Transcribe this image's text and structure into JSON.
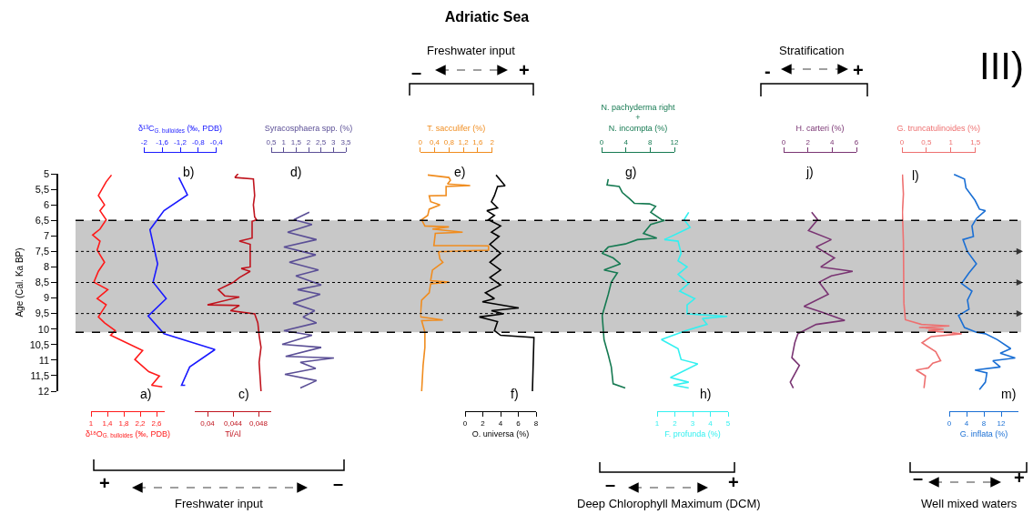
{
  "chart_data": [
    {
      "type": "line",
      "xlabel": "δ¹⁸O$_{G. bulloides}$ (‰, PDB)",
      "ylabel": "Age (Cal. Ka BP)",
      "color": "#ff1a1a",
      "marker": "none",
      "grid": false,
      "x": [
        1.5,
        1.37,
        1.18,
        1.33,
        1.22,
        1.37,
        1.22,
        1.04,
        1.22,
        1.15,
        1.33,
        1.18,
        1.07,
        1.41,
        1.15,
        1.37,
        1.18,
        1.33,
        1.59,
        1.48,
        2.26,
        2.07,
        2.41,
        2.67,
        2.48,
        2.74
      ],
      "values": [
        5.04,
        5.26,
        5.7,
        6.0,
        6.19,
        6.48,
        6.78,
        6.97,
        7.17,
        7.46,
        7.85,
        8.14,
        8.49,
        8.73,
        9.02,
        9.22,
        9.61,
        9.8,
        10.05,
        10.2,
        10.69,
        10.98,
        11.37,
        11.51,
        11.81,
        11.86
      ],
      "xlim": [
        1,
        2.8
      ],
      "xticks": [
        1,
        {
          "value": 1.4,
          "label": "1,4"
        },
        {
          "value": 1.8,
          "label": "1,8"
        },
        {
          "value": 2.2,
          "label": "2,2"
        },
        {
          "value": 2.6,
          "label": "2,6"
        }
      ],
      "ylim": [
        12,
        5
      ],
      "yticks": [
        5,
        {
          "value": 5.5,
          "label": "5,5"
        },
        6,
        {
          "value": 6.5,
          "label": "6,5"
        },
        7,
        {
          "value": 7.5,
          "label": "7,5"
        },
        8,
        {
          "value": 8.5,
          "label": "8,5"
        },
        9,
        {
          "value": 9.5,
          "label": "9,5"
        },
        10,
        {
          "value": 10.5,
          "label": "10,5"
        },
        11,
        {
          "value": 11.5,
          "label": "11,5"
        },
        12
      ],
      "bands": [
        {
          "axis": "y",
          "from": 6.5,
          "to": 10.1,
          "color": "#c8c8c8"
        }
      ],
      "ref_lines": [
        {
          "axis": "y",
          "value": 6.5,
          "line_style": "dashed",
          "color": "#000000"
        },
        {
          "axis": "y",
          "value": 10.1,
          "line_style": "dashed",
          "color": "#000000"
        },
        {
          "axis": "y",
          "value": 7.5,
          "line_style": "dotted",
          "color": "#000000"
        },
        {
          "axis": "y",
          "value": 8.5,
          "line_style": "dotted",
          "color": "#000000"
        },
        {
          "axis": "y",
          "value": 9.5,
          "line_style": "dotted",
          "color": "#000000"
        }
      ],
      "annotations": [
        "a)",
        "Freshwater input",
        "+",
        "–",
        "III)"
      ]
    },
    {
      "type": "line",
      "xlabel": "δ¹³C$_{G. bulloides}$ (‰, PDB)",
      "color": "#1a1aff",
      "marker": "none",
      "grid": false,
      "tick_labels": "x",
      "x": [
        -1.23,
        -1.04,
        -1.56,
        -1.87,
        -1.7,
        -1.8,
        -1.51,
        -1.91,
        -1.56,
        -0.43,
        -0.99,
        -1.17,
        -1.09
      ],
      "values": [
        5.12,
        5.68,
        6.19,
        6.8,
        7.9,
        8.49,
        9.02,
        9.58,
        10.15,
        10.66,
        11.22,
        11.81,
        11.81
      ],
      "xlim": [
        -2,
        -0.4
      ],
      "xticks": [
        -2,
        {
          "value": -1.6,
          "label": "-1,6"
        },
        {
          "value": -1.2,
          "label": "-1,2"
        },
        {
          "value": -0.8,
          "label": "-0,8"
        },
        {
          "value": -0.4,
          "label": "-0,4"
        }
      ],
      "ylim": [
        12,
        5
      ],
      "annotations": [
        "b)"
      ]
    },
    {
      "type": "line",
      "xlabel": "Ti/Al",
      "color": "#c0141e",
      "marker": "none",
      "grid": false,
      "tick_labels": "x",
      "x": [
        0.0448,
        0.0443,
        0.0472,
        0.0474,
        0.0472,
        0.0474,
        0.0477,
        0.047,
        0.047,
        0.045,
        0.0467,
        0.0467,
        0.0467,
        0.0453,
        0.0467,
        0.045,
        0.0441,
        0.0417,
        0.0427,
        0.045,
        0.04,
        0.045,
        0.0436,
        0.0474,
        0.0479,
        0.0481,
        0.0484,
        0.0481,
        0.0484
      ],
      "values": [
        5.0,
        5.12,
        5.17,
        5.7,
        6.0,
        6.39,
        6.48,
        6.53,
        7.07,
        7.17,
        7.27,
        7.85,
        8.0,
        8.05,
        8.14,
        8.34,
        8.49,
        8.73,
        8.93,
        8.97,
        9.22,
        9.24,
        9.41,
        9.51,
        9.8,
        10.2,
        10.59,
        11.07,
        12.0
      ],
      "xlim": [
        0.038,
        0.05
      ],
      "xticks": [
        {
          "value": 0.04,
          "label": "0,04"
        },
        {
          "value": 0.044,
          "label": "0,044"
        },
        {
          "value": 0.048,
          "label": "0,048"
        }
      ],
      "ylim": [
        12,
        5
      ],
      "annotations": [
        "c)"
      ]
    },
    {
      "type": "line",
      "xlabel": "Syracosphaera spp. (%)",
      "color": "#5b4f96",
      "marker": "none",
      "grid": false,
      "tick_labels": "x",
      "x": [
        2.03,
        1.41,
        2.14,
        1.16,
        2.32,
        1.01,
        2.29,
        1.23,
        2.4,
        1.49,
        2.51,
        1.56,
        2.47,
        1.38,
        2.25,
        1.78,
        2.32,
        1.01,
        2.14,
        0.94,
        2.51,
        1.08,
        3.02,
        1.67,
        2.29,
        1.05,
        2.32,
        1.67
      ],
      "values": [
        6.24,
        6.48,
        6.63,
        6.88,
        7.12,
        7.36,
        7.61,
        7.85,
        8.1,
        8.29,
        8.58,
        8.73,
        8.88,
        9.17,
        9.41,
        9.61,
        9.8,
        10.05,
        10.2,
        10.49,
        10.59,
        10.88,
        10.93,
        11.07,
        11.27,
        11.46,
        11.66,
        11.9
      ],
      "xlim": [
        0.5,
        3.5
      ],
      "xticks": [
        {
          "value": 0.5,
          "label": "0,5"
        },
        1,
        {
          "value": 1.5,
          "label": "1,5"
        },
        2,
        {
          "value": 2.5,
          "label": "2,5"
        },
        3,
        {
          "value": 3.5,
          "label": "3,5"
        }
      ],
      "ylim": [
        12,
        5
      ],
      "annotations": [
        "d)"
      ]
    },
    {
      "type": "line",
      "xlabel": "T. sacculifer (%)",
      "color": "#f08c1e",
      "marker": "none",
      "grid": false,
      "tick_labels": "x",
      "x": [
        0.21,
        0.8,
        0.84,
        0.76,
        1.39,
        0.72,
        0.72,
        0.25,
        0.29,
        0.55,
        0.25,
        0.21,
        0.04,
        0.13,
        0.8,
        0.34,
        1.18,
        0.42,
        0.38,
        1.9,
        1.9,
        0.51,
        0.55,
        0.63,
        0.34,
        0.29,
        0.8,
        0.29,
        0.25,
        0.04,
        0.0,
        0.63,
        0.04,
        0.13,
        0.13,
        0.08,
        0.04
      ],
      "values": [
        5.04,
        5.12,
        5.21,
        5.33,
        5.38,
        5.41,
        5.7,
        5.71,
        5.9,
        6.0,
        6.14,
        6.34,
        6.48,
        6.68,
        6.71,
        6.78,
        6.88,
        6.92,
        7.31,
        7.32,
        7.46,
        7.51,
        7.75,
        7.85,
        8.1,
        8.44,
        8.49,
        8.54,
        8.83,
        9.07,
        9.61,
        9.71,
        9.73,
        10.1,
        10.59,
        11.17,
        12.0
      ],
      "xlim": [
        0,
        2
      ],
      "xticks": [
        0,
        {
          "value": 0.4,
          "label": "0,4"
        },
        {
          "value": 0.8,
          "label": "0,8"
        },
        {
          "value": 1.2,
          "label": "1,2"
        },
        {
          "value": 1.6,
          "label": "1,6"
        },
        2
      ],
      "ylim": [
        12,
        5
      ],
      "title": "Adriatic Sea",
      "annotations": [
        "e)",
        "Freshwater input",
        "–",
        "+"
      ]
    },
    {
      "type": "line",
      "xlabel": "O. universa (%)",
      "color": "#000000",
      "marker": "none",
      "grid": false,
      "tick_labels": "x",
      "x": [
        3.49,
        4.0,
        4.51,
        3.66,
        3.31,
        2.97,
        3.66,
        2.46,
        3.31,
        2.63,
        4.0,
        2.97,
        3.83,
        2.8,
        4.0,
        2.8,
        4.0,
        2.8,
        4.0,
        2.29,
        3.31,
        1.95,
        6.05,
        2.97,
        4.34,
        1.61,
        3.66,
        3.31,
        4.0,
        7.76,
        7.59
      ],
      "values": [
        5.04,
        5.21,
        5.39,
        5.41,
        5.7,
        5.9,
        6.1,
        6.19,
        6.34,
        6.48,
        6.68,
        6.88,
        7.02,
        7.27,
        7.56,
        7.85,
        8.1,
        8.34,
        8.58,
        8.83,
        9.02,
        9.12,
        9.32,
        9.41,
        9.51,
        9.61,
        9.76,
        10.05,
        10.2,
        10.27,
        12.0
      ],
      "xlim": [
        0,
        8
      ],
      "xticks": [
        0,
        2,
        4,
        6,
        8
      ],
      "ylim": [
        12,
        5
      ],
      "annotations": [
        "f)"
      ]
    },
    {
      "type": "line",
      "xlabel": "N. pachyderma right\n+\nN. incompta (%)",
      "color": "#167a52",
      "marker": "none",
      "grid": false,
      "tick_labels": "x",
      "x": [
        1.1,
        0.9,
        2.9,
        3.4,
        4.6,
        5.4,
        7.9,
        8.9,
        8.1,
        9.9,
        10.4,
        8.1,
        6.9,
        9.1,
        5.9,
        3.9,
        1.1,
        0.1,
        1.9,
        3.1,
        0.4,
        2.6,
        1.6,
        1.1,
        0.1,
        0.4,
        1.1,
        1.6,
        1.9,
        3.9
      ],
      "values": [
        5.17,
        5.36,
        5.41,
        5.6,
        5.8,
        5.95,
        5.97,
        6.05,
        6.24,
        6.48,
        6.5,
        6.63,
        6.92,
        7.07,
        7.12,
        7.26,
        7.36,
        7.56,
        7.71,
        7.9,
        8.1,
        8.19,
        8.49,
        8.88,
        9.56,
        10.34,
        10.83,
        11.22,
        11.76,
        11.9
      ],
      "xlim": [
        0,
        12
      ],
      "xticks": [
        0,
        4,
        8,
        12
      ],
      "ylim": [
        12,
        5
      ],
      "annotations": [
        "g)",
        "Deep Chlorophyll Maximum (DCM)",
        "–",
        "+"
      ]
    },
    {
      "type": "line",
      "xlabel": "F. profunda (%)",
      "color": "#33f0f0",
      "marker": "none",
      "grid": false,
      "tick_labels": "x",
      "x": [
        2.78,
        2.52,
        2.86,
        1.41,
        2.18,
        2.35,
        2.18,
        2.69,
        2.18,
        2.78,
        2.27,
        3.12,
        2.69,
        2.69,
        4.95,
        3.55,
        3.81,
        2.61,
        1.24,
        2.18,
        2.35,
        3.29,
        1.75,
        2.78,
        1.92,
        2.78
      ],
      "values": [
        6.24,
        6.48,
        6.73,
        7.12,
        7.17,
        7.56,
        7.8,
        8.0,
        8.24,
        8.53,
        8.78,
        9.02,
        9.22,
        9.51,
        9.59,
        9.66,
        9.85,
        10.05,
        10.34,
        10.63,
        10.98,
        11.12,
        11.56,
        11.71,
        11.8,
        11.9
      ],
      "xlim": [
        1,
        5
      ],
      "xticks": [
        1,
        2,
        3,
        4,
        5
      ],
      "ylim": [
        12,
        5
      ],
      "annotations": [
        "h)"
      ]
    },
    {
      "type": "line",
      "xlabel": "H. carteri (%)",
      "color": "#7a3573",
      "marker": "none",
      "grid": false,
      "tick_labels": "x",
      "x": [
        2.31,
        2.8,
        2.05,
        3.93,
        2.68,
        4.19,
        3.06,
        5.69,
        3.93,
        2.93,
        3.68,
        1.68,
        3.18,
        5.04,
        2.68,
        1.18,
        0.92,
        0.68,
        1.3,
        0.55,
        0.8
      ],
      "values": [
        6.24,
        6.48,
        6.83,
        7.12,
        7.36,
        7.71,
        8.0,
        8.14,
        8.29,
        8.49,
        8.88,
        9.27,
        9.46,
        9.72,
        9.85,
        10.15,
        10.44,
        10.92,
        11.17,
        11.71,
        11.9
      ],
      "xlim": [
        0,
        6
      ],
      "xticks": [
        0,
        2,
        4,
        6
      ],
      "ylim": [
        12,
        5
      ],
      "annotations": [
        "j)",
        "Stratification",
        "-",
        "+"
      ]
    },
    {
      "type": "line",
      "xlabel": "G. truncatulinoides (%)",
      "color": "#ee7070",
      "marker": "none",
      "grid": false,
      "tick_labels": "x",
      "x": [
        0.01,
        0.03,
        0.01,
        0.03,
        0.04,
        0.07,
        0.4,
        0.97,
        0.35,
        0.85,
        0.54,
        1.22,
        0.6,
        0.41,
        0.69,
        0.79,
        0.63,
        0.54,
        0.29,
        0.48,
        0.45
      ],
      "values": [
        5.02,
        5.65,
        6.24,
        7.22,
        9.17,
        9.7,
        9.85,
        9.9,
        9.95,
        10.0,
        10.05,
        10.15,
        10.24,
        10.44,
        10.73,
        11.02,
        11.1,
        11.25,
        11.32,
        11.51,
        11.9
      ],
      "xlim": [
        0,
        1.5
      ],
      "xticks": [
        0,
        {
          "value": 0.5,
          "label": "0,5"
        },
        1,
        {
          "value": 1.5,
          "label": "1,5"
        }
      ],
      "ylim": [
        12,
        5
      ],
      "annotations": [
        "l)"
      ]
    },
    {
      "type": "line",
      "xlabel": "G. inflata (%)",
      "color": "#1a6fd4",
      "marker": "none",
      "grid": false,
      "tick_labels": "x",
      "x": [
        1.1,
        3.52,
        3.87,
        5.94,
        6.98,
        8.35,
        6.28,
        5.25,
        5.59,
        3.17,
        4.21,
        6.28,
        4.56,
        2.84,
        5.25,
        4.21,
        4.56,
        2.13,
        3.52,
        6.28,
        8.35,
        11.11,
        14.22,
        11.8,
        15.25,
        10.08,
        11.8,
        5.94,
        8.7,
        8.35,
        6.98
      ],
      "values": [
        5.02,
        5.17,
        5.46,
        5.85,
        6.14,
        6.19,
        6.44,
        6.68,
        7.02,
        7.12,
        7.51,
        7.9,
        8.19,
        8.53,
        8.78,
        9.07,
        9.36,
        9.56,
        9.95,
        10.1,
        10.15,
        10.34,
        10.63,
        10.78,
        10.93,
        11.02,
        11.22,
        11.32,
        11.41,
        11.71,
        11.95
      ],
      "xlim": [
        0,
        16
      ],
      "xticks": [
        0,
        4,
        8,
        12
      ],
      "ylim": [
        12,
        5
      ],
      "annotations": [
        "m)",
        "Well mixed waters",
        "–",
        "+"
      ]
    }
  ]
}
